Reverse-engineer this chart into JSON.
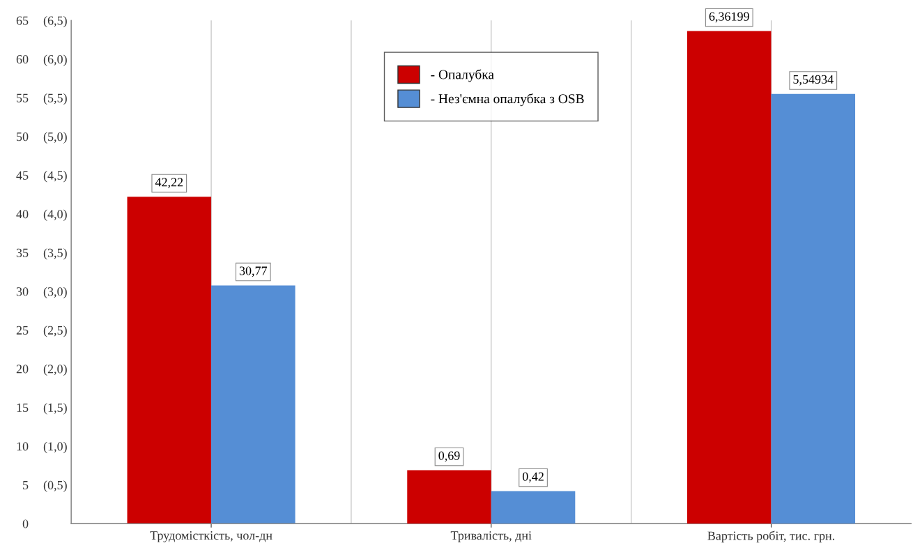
{
  "chart_data": {
    "type": "bar",
    "categories": [
      "Трудомісткість, чол-дн",
      "Тривалість, дні",
      "Вартість робіт, тис. грн."
    ],
    "series": [
      {
        "name": "- Опалубка",
        "color": "#cc0000",
        "values": [
          42.22,
          null,
          null
        ],
        "value_labels": [
          "42,22",
          null,
          null
        ]
      },
      {
        "name": "- Нез'ємна опалубка з OSB",
        "color": "#558ed5",
        "values": [
          30.77,
          null,
          null
        ],
        "value_labels": [
          "30,77",
          null,
          null
        ]
      },
      {
        "color": "#cc0000",
        "axis": "y2",
        "values": [
          null,
          0.69,
          6.36199
        ],
        "value_labels": [
          null,
          "0,69",
          "6,36199"
        ]
      },
      {
        "color": "#558ed5",
        "axis": "y2",
        "values": [
          null,
          0.42,
          5.54934
        ],
        "value_labels": [
          null,
          "0,42",
          "5,54934"
        ]
      }
    ],
    "ylim": [
      0,
      65
    ],
    "yticks": [
      0,
      5,
      10,
      15,
      20,
      25,
      30,
      35,
      40,
      45,
      50,
      55,
      60,
      65
    ],
    "y2lim": [
      0,
      6.5
    ],
    "y2ticks": [
      {
        "value": 0.5,
        "label": "(0,5)"
      },
      {
        "value": 1.0,
        "label": "(1,0)"
      },
      {
        "value": 1.5,
        "label": "(1,5)"
      },
      {
        "value": 2.0,
        "label": "(2,0)"
      },
      {
        "value": 2.5,
        "label": "(2,5)"
      },
      {
        "value": 3.0,
        "label": "(3,0)"
      },
      {
        "value": 3.5,
        "label": "(3,5)"
      },
      {
        "value": 4.0,
        "label": "(4,0)"
      },
      {
        "value": 4.5,
        "label": "(4,5)"
      },
      {
        "value": 5.0,
        "label": "(5,0)"
      },
      {
        "value": 5.5,
        "label": "(5,5)"
      },
      {
        "value": 6.0,
        "label": "(6,0)"
      },
      {
        "value": 6.5,
        "label": "(6,5)"
      }
    ],
    "grid": "x",
    "legend": "top"
  }
}
